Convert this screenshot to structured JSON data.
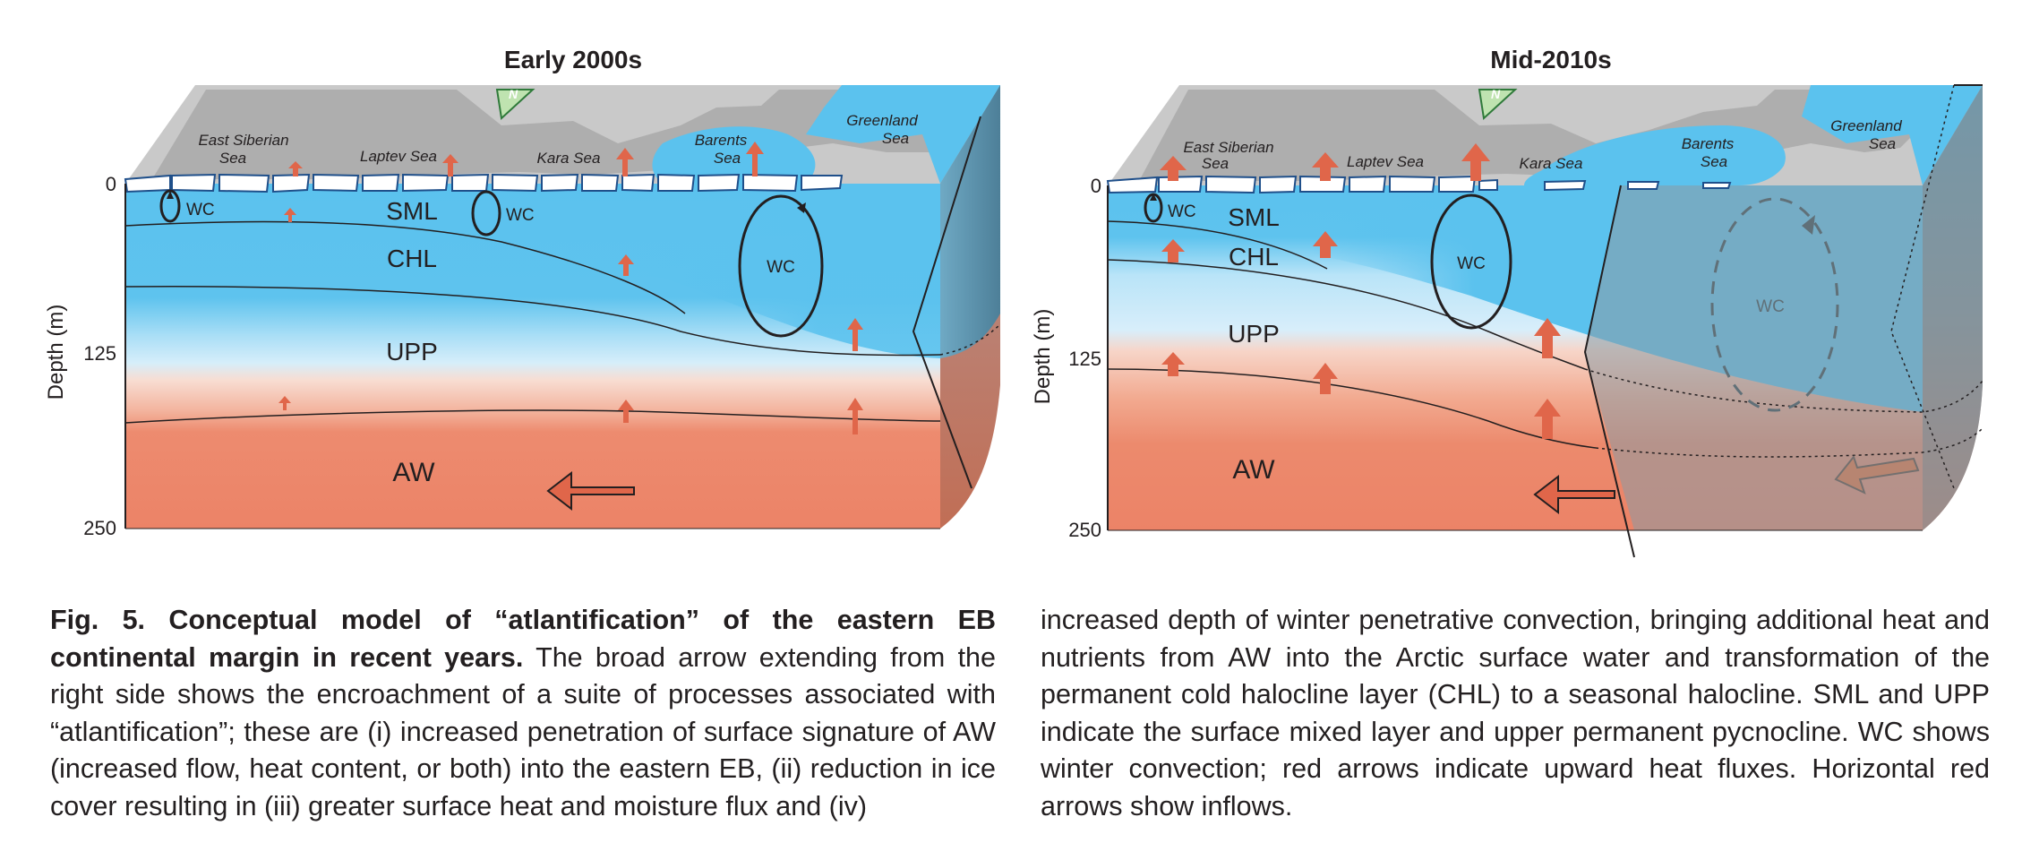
{
  "panels": [
    {
      "title": "Early 2000s",
      "y_axis_label": "Depth (m)",
      "depth_ticks": [
        "0",
        "125",
        "250"
      ],
      "seas": [
        {
          "line1": "East Siberian",
          "line2": "Sea"
        },
        {
          "line1": "Laptev Sea",
          "line2": ""
        },
        {
          "line1": "Kara Sea",
          "line2": ""
        },
        {
          "line1": "Barents",
          "line2": "Sea"
        },
        {
          "line1": "Greenland",
          "line2": "Sea"
        }
      ],
      "north_marker": "N",
      "layers": [
        "SML",
        "CHL",
        "UPP",
        "AW"
      ],
      "wc_labels": [
        "WC",
        "WC",
        "WC"
      ]
    },
    {
      "title": "Mid-2010s",
      "y_axis_label": "Depth (m)",
      "depth_ticks": [
        "0",
        "125",
        "250"
      ],
      "seas": [
        {
          "line1": "East Siberian",
          "line2": "Sea"
        },
        {
          "line1": "Laptev Sea",
          "line2": ""
        },
        {
          "line1": "Kara Sea",
          "line2": ""
        },
        {
          "line1": "Barents",
          "line2": "Sea"
        },
        {
          "line1": "Greenland",
          "line2": "Sea"
        }
      ],
      "north_marker": "N",
      "layers": [
        "SML",
        "CHL",
        "UPP",
        "AW"
      ],
      "wc_labels": [
        "WC",
        "WC",
        "WC"
      ]
    }
  ],
  "caption": {
    "heading": "Fig. 5. Conceptual model of “atlantification” of the eastern EB continental margin in recent years.",
    "body_left": "The broad arrow extending from the right side shows the encroachment of a suite of processes associated with “atlantification”; these are (i) increased penetration of surface signature of AW (increased flow, heat content, or both) into the eastern EB, (ii) reduction in ice cover resulting in (iii) greater surface heat and moisture flux and (iv)",
    "body_right": "increased depth of winter penetrative convection, bringing additional heat and nutrients from AW into the Arctic surface water and transformation of the permanent cold halocline layer (CHL) to a seasonal halocline. SML and UPP indicate the surface mixed layer and upper permanent pycnocline. WC shows winter convection; red arrows indicate upward heat fluxes. Horizontal red arrows show inflows."
  },
  "colors": {
    "surface_blue": "#5bc2ee",
    "deep_blue": "#7fd0f3",
    "upp_pale": "#cbe9f8",
    "aw_salmon": "#ec8468",
    "aw_light": "#f6c2ad",
    "heat_arrow": "#e0664a",
    "land_gray": "#b8b8b8",
    "encroach_gray": "#8a9aa4"
  }
}
